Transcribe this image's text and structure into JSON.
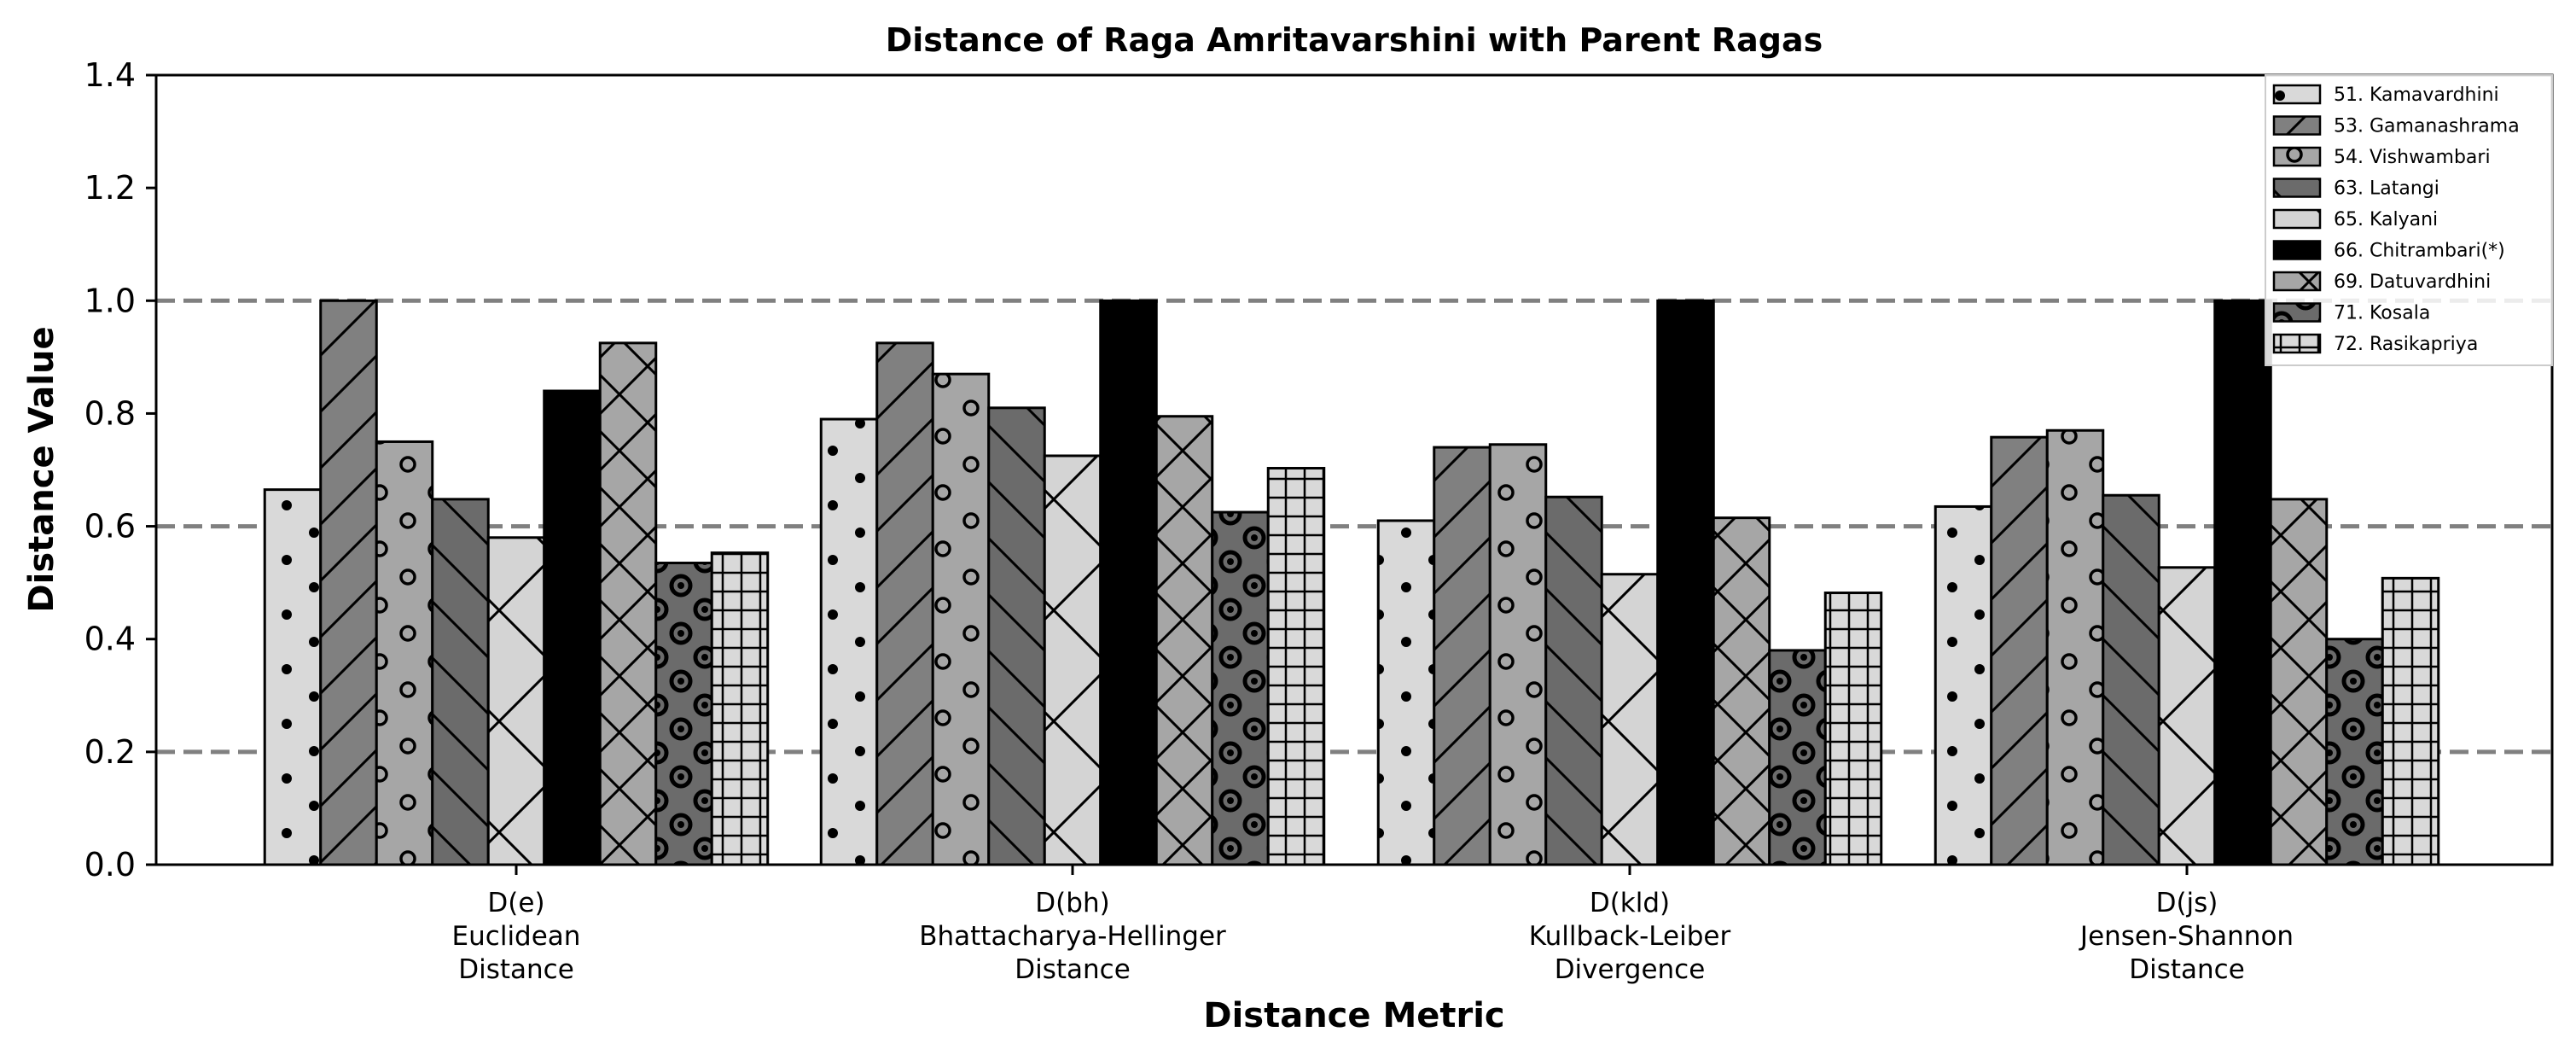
{
  "chart_data": {
    "type": "bar",
    "title": "Distance of Raga Amritavarshini with Parent Ragas",
    "xlabel": "Distance Metric",
    "ylabel": "Distance Value",
    "ylim": [
      0,
      1.4
    ],
    "yticks": [
      "0.0",
      "0.2",
      "0.4",
      "0.6",
      "0.8",
      "1.0",
      "1.2",
      "1.4"
    ],
    "reference_lines": [
      0.2,
      0.6,
      1.0
    ],
    "grid": false,
    "legend_position": "top-right",
    "categories": [
      [
        "D(e)",
        "Euclidean",
        "Distance"
      ],
      [
        "D(bh)",
        "Bhattacharya-Hellinger",
        "Distance"
      ],
      [
        "D(kld)",
        "Kullback-Leiber",
        "Divergence"
      ],
      [
        "D(js)",
        "Jensen-Shannon",
        "Distance"
      ]
    ],
    "series": [
      {
        "name": "51. Kamavardhini",
        "color": "#d9d9d9",
        "pattern": "dots",
        "values": [
          0.665,
          0.79,
          0.61,
          0.635
        ]
      },
      {
        "name": "53. Gamanashrama",
        "color": "#808080",
        "pattern": "diag-up",
        "values": [
          1.0,
          0.925,
          0.74,
          0.758
        ]
      },
      {
        "name": "54. Vishwambari",
        "color": "#a6a6a6",
        "pattern": "rings",
        "values": [
          0.75,
          0.87,
          0.745,
          0.77
        ]
      },
      {
        "name": "63. Latangi",
        "color": "#6b6b6b",
        "pattern": "diag-down",
        "values": [
          0.648,
          0.81,
          0.652,
          0.655
        ]
      },
      {
        "name": "65. Kalyani",
        "color": "#d4d4d4",
        "pattern": "cross-x",
        "values": [
          0.58,
          0.725,
          0.515,
          0.527
        ]
      },
      {
        "name": "66. Chitrambari(*)",
        "color": "#000000",
        "pattern": "none",
        "values": [
          0.84,
          1.0,
          1.0,
          1.0
        ]
      },
      {
        "name": "69. Datuvardhini",
        "color": "#a6a6a6",
        "pattern": "diag-x",
        "values": [
          0.925,
          0.795,
          0.615,
          0.648
        ]
      },
      {
        "name": "71. Kosala",
        "color": "#6b6b6b",
        "pattern": "bullseye",
        "values": [
          0.535,
          0.625,
          0.38,
          0.4
        ]
      },
      {
        "name": "72. Rasikapriya",
        "color": "#d9d9d9",
        "pattern": "grid",
        "values": [
          0.553,
          0.703,
          0.482,
          0.508
        ]
      }
    ]
  }
}
